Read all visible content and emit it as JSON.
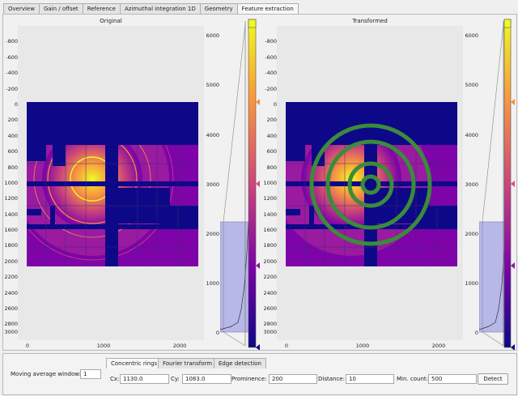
{
  "tabs": [
    {
      "label": "Overview"
    },
    {
      "label": "Gain / offset"
    },
    {
      "label": "Reference"
    },
    {
      "label": "Azimuthal integration 1D"
    },
    {
      "label": "Geometry"
    },
    {
      "label": "Feature extraction",
      "active": true
    }
  ],
  "left_plot": {
    "title": "Original",
    "y_ticks": [
      "-800",
      "-600",
      "-400",
      "-200",
      "0",
      "200",
      "400",
      "600",
      "800",
      "1000",
      "1200",
      "1400",
      "1600",
      "1800",
      "2000",
      "2200",
      "2400",
      "2600",
      "2800",
      "3000"
    ],
    "x_ticks": [
      "0",
      "1000",
      "2000"
    ],
    "colorbar_ticks": [
      "6000",
      "5000",
      "4000",
      "3000",
      "2000",
      "1000",
      "0"
    ]
  },
  "right_plot": {
    "title": "Transformed",
    "y_ticks": [
      "-800",
      "-600",
      "-400",
      "-200",
      "0",
      "200",
      "400",
      "600",
      "800",
      "1000",
      "1200",
      "1400",
      "1600",
      "1800",
      "2000",
      "2200",
      "2400",
      "2600",
      "2800",
      "3000"
    ],
    "x_ticks": [
      "0",
      "1000",
      "2000"
    ],
    "colorbar_ticks": [
      "6000",
      "5000",
      "4000",
      "3000",
      "2000",
      "1000",
      "0"
    ]
  },
  "colormap_colors": {
    "dark": "#0d0887",
    "purple": "#7e03a8",
    "magenta": "#cc4778",
    "orange": "#f89540",
    "yellow": "#f0f921",
    "ring_green": "#3a8c3a",
    "histogram_fill": "#b7b7e8"
  },
  "colorbar_markers": {
    "colors": [
      "#f3913b",
      "#dd4c86",
      "#8b16a0",
      "#0d0887"
    ]
  },
  "controls": {
    "moving_average_label": "Moving average window:",
    "moving_average_value": "1",
    "method_tabs": [
      {
        "label": "Concentric rings",
        "active": true
      },
      {
        "label": "Fourier transform"
      },
      {
        "label": "Edge detection"
      }
    ],
    "cx_label": "Cx:",
    "cx_value": "1130.0",
    "cy_label": "Cy:",
    "cy_value": "1083.0",
    "prominence_label": "Prominence:",
    "prominence_value": "200",
    "distance_label": "Distance:",
    "distance_value": "10",
    "min_count_label": "Min. count:",
    "min_count_value": "500",
    "detect_label": "Detect"
  }
}
